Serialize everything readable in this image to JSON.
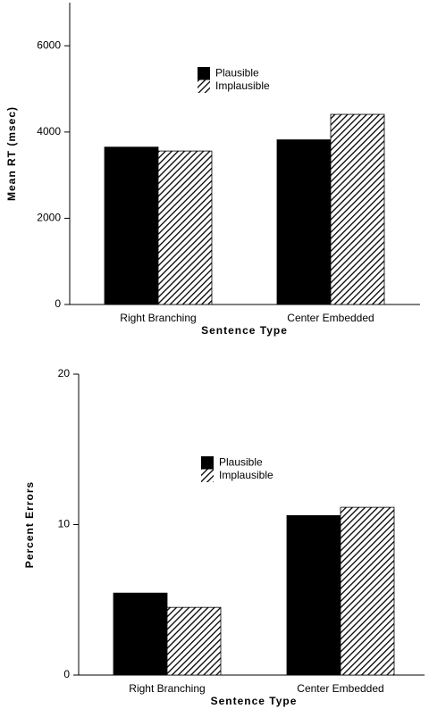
{
  "chart_data": [
    {
      "type": "bar",
      "ylabel": "Mean  RT  (msec)",
      "xlabel": "Sentence  Type",
      "categories": [
        "Right Branching",
        "Center Embedded"
      ],
      "series": [
        {
          "name": "Plausible",
          "color": "#000000",
          "values": [
            3650,
            3820
          ]
        },
        {
          "name": "Implausible",
          "color": "#000000",
          "pattern": "hatch",
          "values": [
            3560,
            4410
          ]
        }
      ],
      "ylim": [
        0,
        7000
      ],
      "yticks": [
        0,
        2000,
        4000,
        6000
      ]
    },
    {
      "type": "bar",
      "ylabel": "Percent    Errors",
      "xlabel": "Sentence  Type",
      "categories": [
        "Right  Branching",
        "Center Embedded"
      ],
      "series": [
        {
          "name": "Plausible",
          "color": "#000000",
          "values": [
            5.45,
            10.6
          ]
        },
        {
          "name": "Implausible",
          "color": "#000000",
          "pattern": "hatch",
          "values": [
            4.5,
            11.15
          ]
        }
      ],
      "ylim": [
        0,
        20
      ],
      "yticks": [
        0,
        10,
        20
      ]
    }
  ]
}
